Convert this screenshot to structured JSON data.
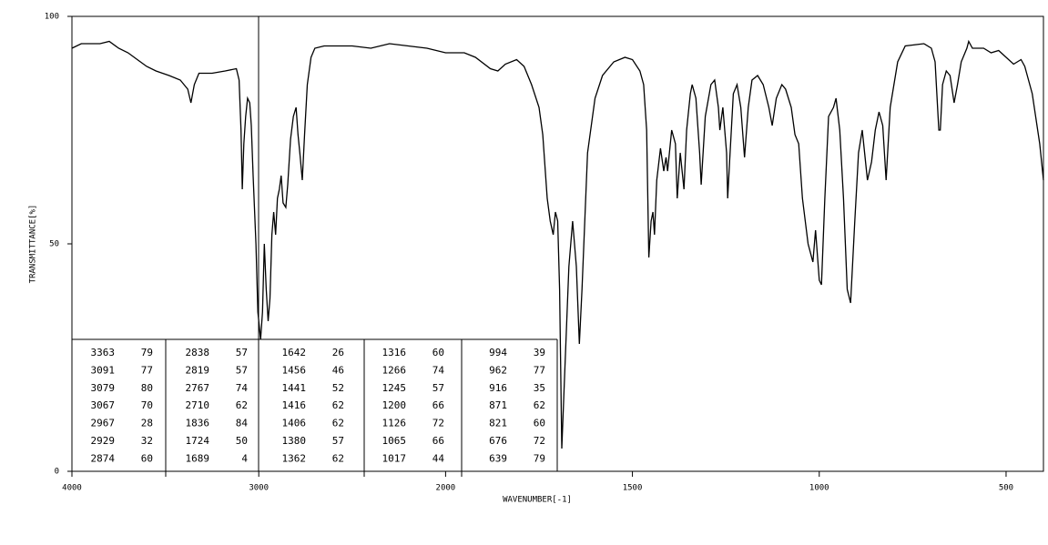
{
  "chart_data": {
    "type": "line",
    "x_label": "WAVENUMBER[-1]",
    "y_label": "TRANSMITTANCE[%]",
    "xlim": [
      4000,
      400
    ],
    "x_scale_break": 2000,
    "ylim": [
      0,
      100
    ],
    "xticks": [
      4000,
      3000,
      2000,
      1500,
      1000,
      500
    ],
    "yticks": [
      0,
      50,
      100
    ],
    "x": [
      4000,
      3950,
      3850,
      3800,
      3750,
      3700,
      3650,
      3600,
      3550,
      3480,
      3420,
      3380,
      3363,
      3345,
      3320,
      3250,
      3180,
      3120,
      3105,
      3095,
      3088,
      3080,
      3070,
      3060,
      3048,
      3040,
      3030,
      3015,
      3005,
      2990,
      2980,
      2970,
      2960,
      2950,
      2940,
      2930,
      2920,
      2910,
      2900,
      2890,
      2880,
      2870,
      2855,
      2845,
      2830,
      2815,
      2800,
      2790,
      2780,
      2767,
      2755,
      2740,
      2720,
      2700,
      2650,
      2500,
      2400,
      2300,
      2200,
      2100,
      2000,
      1950,
      1920,
      1880,
      1860,
      1840,
      1810,
      1790,
      1770,
      1750,
      1740,
      1728,
      1720,
      1712,
      1706,
      1700,
      1695,
      1689,
      1682,
      1670,
      1660,
      1650,
      1642,
      1635,
      1620,
      1600,
      1580,
      1550,
      1520,
      1500,
      1480,
      1470,
      1462,
      1456,
      1450,
      1445,
      1441,
      1435,
      1425,
      1416,
      1410,
      1406,
      1395,
      1385,
      1380,
      1372,
      1362,
      1355,
      1345,
      1340,
      1330,
      1320,
      1316,
      1305,
      1290,
      1280,
      1270,
      1266,
      1258,
      1248,
      1245,
      1240,
      1230,
      1220,
      1210,
      1200,
      1190,
      1180,
      1165,
      1150,
      1135,
      1126,
      1115,
      1100,
      1090,
      1075,
      1065,
      1055,
      1045,
      1030,
      1017,
      1010,
      1000,
      994,
      985,
      975,
      962,
      955,
      945,
      935,
      925,
      916,
      905,
      895,
      885,
      871,
      860,
      850,
      840,
      830,
      821,
      810,
      790,
      770,
      720,
      700,
      690,
      680,
      676,
      670,
      660,
      650,
      639,
      630,
      620,
      605,
      600,
      590,
      560,
      540,
      520,
      500,
      480,
      460,
      450,
      430,
      410,
      400
    ],
    "series": [
      {
        "color": "#000000",
        "values": [
          93,
          94,
          94,
          94.5,
          93,
          92,
          90.5,
          89,
          88,
          87,
          86,
          84,
          81,
          85,
          87.5,
          87.5,
          88,
          88.5,
          86,
          75,
          62,
          72,
          78,
          82,
          81,
          76,
          65,
          50,
          35,
          29,
          35,
          50,
          40,
          33,
          38,
          52,
          57,
          52,
          60,
          62,
          65,
          59,
          58,
          63,
          73,
          78,
          80,
          74,
          70,
          64,
          74,
          85,
          91,
          93,
          93.5,
          93.5,
          93,
          94,
          93.5,
          93,
          92,
          92,
          91,
          88.5,
          88,
          89.5,
          90.5,
          89,
          85,
          80,
          74,
          60,
          55,
          52,
          57,
          55,
          40,
          5,
          20,
          45,
          55,
          45,
          28,
          40,
          70,
          82,
          87,
          90,
          91,
          90.5,
          88,
          85,
          75,
          47,
          55,
          57,
          52,
          64,
          71,
          66,
          69,
          66,
          75,
          72,
          60,
          70,
          62,
          75,
          83,
          85,
          82,
          70,
          63,
          78,
          85,
          86,
          80,
          75,
          80,
          70,
          60,
          68,
          83,
          85,
          80,
          69,
          80,
          86,
          87,
          85,
          80,
          76,
          82,
          85,
          84,
          80,
          74,
          72,
          60,
          50,
          46,
          53,
          42,
          41,
          60,
          78,
          80,
          82,
          75,
          60,
          40,
          37,
          55,
          70,
          75,
          64,
          68,
          75,
          79,
          76,
          64,
          80,
          90,
          93.5,
          94,
          93,
          90,
          75,
          75,
          85,
          88,
          87,
          81,
          85,
          90,
          93,
          94.5,
          93,
          93,
          92,
          92.5,
          91,
          89.5,
          90.5,
          89,
          83,
          72,
          64
        ]
      }
    ],
    "peak_table": [
      [
        [
          3363,
          79
        ],
        [
          3091,
          77
        ],
        [
          3079,
          80
        ],
        [
          3067,
          70
        ],
        [
          2967,
          28
        ],
        [
          2929,
          32
        ],
        [
          2874,
          60
        ]
      ],
      [
        [
          2838,
          57
        ],
        [
          2819,
          57
        ],
        [
          2767,
          74
        ],
        [
          2710,
          62
        ],
        [
          1836,
          84
        ],
        [
          1724,
          50
        ],
        [
          1689,
          4
        ]
      ],
      [
        [
          1642,
          26
        ],
        [
          1456,
          46
        ],
        [
          1441,
          52
        ],
        [
          1416,
          62
        ],
        [
          1406,
          62
        ],
        [
          1380,
          57
        ],
        [
          1362,
          62
        ]
      ],
      [
        [
          1316,
          60
        ],
        [
          1266,
          74
        ],
        [
          1245,
          57
        ],
        [
          1200,
          66
        ],
        [
          1126,
          72
        ],
        [
          1065,
          66
        ],
        [
          1017,
          44
        ]
      ],
      [
        [
          994,
          39
        ],
        [
          962,
          77
        ],
        [
          916,
          35
        ],
        [
          871,
          62
        ],
        [
          821,
          60
        ],
        [
          676,
          72
        ],
        [
          639,
          79
        ]
      ]
    ]
  }
}
